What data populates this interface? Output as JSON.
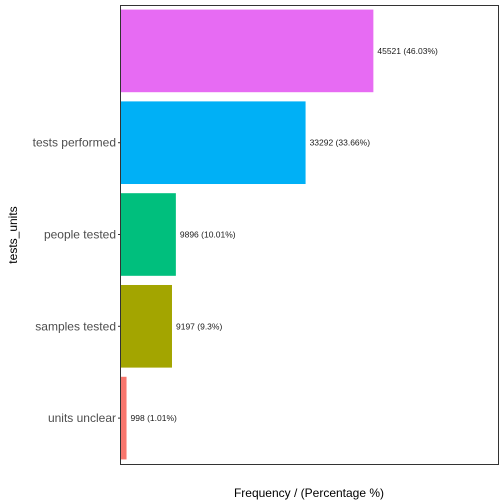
{
  "chart_data": {
    "type": "bar",
    "orientation": "horizontal",
    "ylabel": "tests_units",
    "xlabel": "Frequency / (Percentage %)",
    "categories": [
      "",
      "tests performed",
      "people tested",
      "samples tested",
      "units unclear"
    ],
    "values": [
      45521,
      33292,
      9896,
      9197,
      998
    ],
    "percentages": [
      46.03,
      33.66,
      10.01,
      9.3,
      1.01
    ],
    "data_labels": [
      "45521 (46.03%)",
      "33292 (33.66%)",
      "9896 (10.01%)",
      "9197 (9.3%)",
      "998 (1.01%)"
    ],
    "colors": [
      "#E76BF3",
      "#00B0F6",
      "#00BF7D",
      "#A3A500",
      "#F8766D"
    ],
    "xlim": [
      0,
      68000
    ],
    "grid": false,
    "legend": "none"
  }
}
